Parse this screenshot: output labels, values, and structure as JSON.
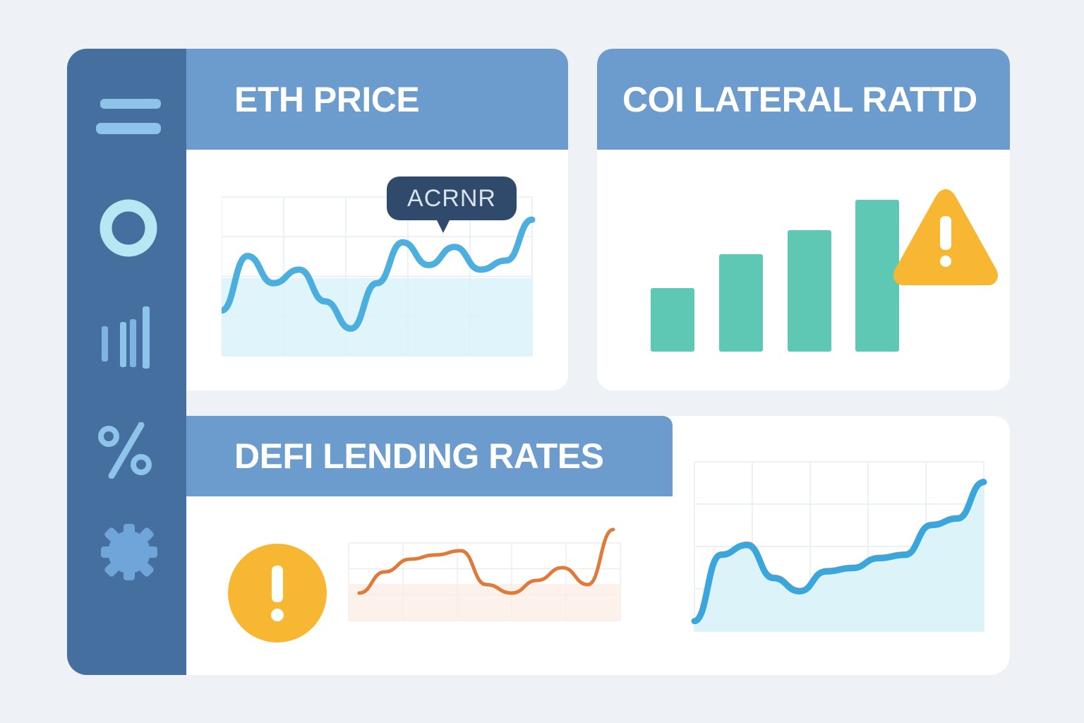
{
  "sidebar": {
    "icons": [
      "menu-icon",
      "ring-icon",
      "bar-chart-icon",
      "percent-icon",
      "gear-icon"
    ]
  },
  "cards": {
    "eth_price": {
      "title": "ETH PRICE",
      "tooltip": "ACRNR"
    },
    "collateral": {
      "title": "COI LATERAL RATTD"
    },
    "defi": {
      "title": "DEFI LENDING RATES"
    }
  },
  "colors": {
    "sidebar": "#456f9f",
    "header": "#6c9bcd",
    "line_blue": "#3aa6dc",
    "fill_blue": "#d9f2fa",
    "bar_teal": "#5fc8b5",
    "line_orange": "#e07a3a",
    "warning": "#f7b733"
  },
  "chart_data": [
    {
      "type": "area",
      "series": [
        {
          "values": [
            1.0,
            2.2,
            1.6,
            1.9,
            1.2,
            0.6,
            1.6,
            2.5,
            2.0,
            2.4,
            1.9,
            2.1,
            3.0
          ]
        }
      ],
      "grid": true
    },
    {
      "type": "bar",
      "values": [
        90,
        138,
        172,
        215
      ],
      "grid": false
    },
    {
      "type": "line",
      "series": [
        {
          "values": [
            1.0,
            1.5,
            1.8,
            1.9,
            2.0,
            1.2,
            1.0,
            1.3,
            1.6,
            1.2,
            2.5
          ]
        }
      ],
      "grid": true
    },
    {
      "type": "area",
      "series": [
        {
          "values": [
            0.2,
            2.2,
            2.5,
            1.5,
            1.1,
            1.7,
            1.8,
            2.1,
            2.2,
            3.1,
            3.3,
            4.4
          ]
        }
      ],
      "grid": true
    }
  ]
}
